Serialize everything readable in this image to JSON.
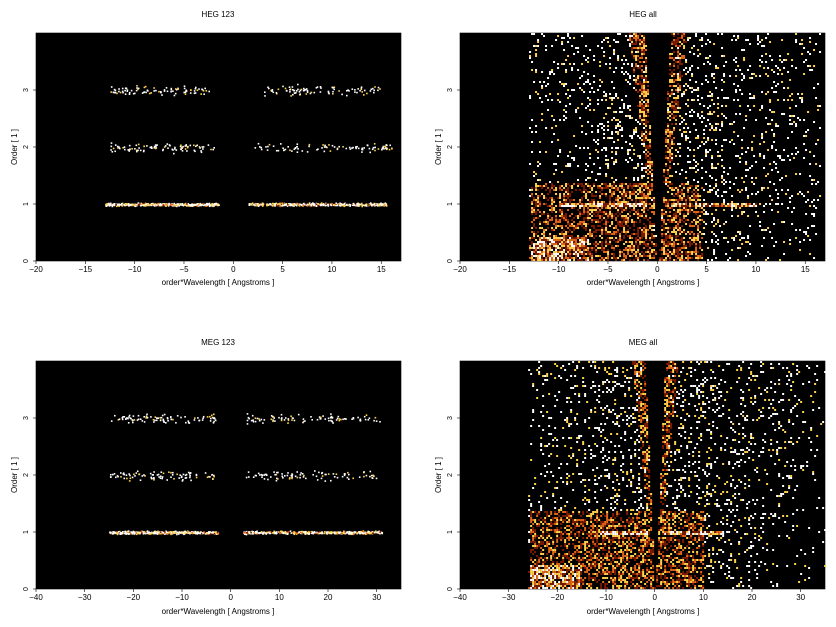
{
  "chart_data": [
    {
      "type": "heatmap",
      "title": "HEG 123",
      "xlabel": "order*Wavelength [ Angstroms ]",
      "ylabel": "Order [ 1 ]",
      "xlim": [
        -20,
        17
      ],
      "ylim": [
        0,
        4
      ],
      "xticks": [
        -20,
        -15,
        -10,
        -5,
        0,
        5,
        10,
        15
      ],
      "xtick_labels": [
        "−20",
        "−15",
        "−10",
        "−5",
        "0",
        "5",
        "10",
        "15"
      ],
      "yticks": [
        0,
        1,
        2,
        3
      ],
      "ytick_labels": [
        "0",
        "1",
        "2",
        "3"
      ],
      "bands": [
        {
          "order": 1,
          "x_ranges": [
            [
              -13,
              -1.5
            ],
            [
              1.5,
              15.5
            ]
          ],
          "strength": "strong"
        },
        {
          "order": 2,
          "x_ranges": [
            [
              -12.5,
              -2
            ],
            [
              2,
              16
            ]
          ],
          "strength": "weak"
        },
        {
          "order": 3,
          "x_ranges": [
            [
              -12.5,
              -2.5
            ],
            [
              3,
              15
            ]
          ],
          "strength": "weak"
        }
      ],
      "background_color": "#000000"
    },
    {
      "type": "heatmap",
      "title": "HEG all",
      "xlabel": "order*Wavelength [ Angstroms ]",
      "ylabel": "Order [ 1 ]",
      "xlim": [
        -20,
        17
      ],
      "ylim": [
        0,
        4
      ],
      "xticks": [
        -20,
        -15,
        -10,
        -5,
        0,
        5,
        10,
        15
      ],
      "xtick_labels": [
        "−20",
        "−15",
        "−10",
        "−5",
        "0",
        "5",
        "10",
        "15"
      ],
      "yticks": [
        0,
        1,
        2,
        3
      ],
      "ytick_labels": [
        "0",
        "1",
        "2",
        "3"
      ],
      "x_data_range": [
        -13,
        16.5
      ],
      "background_color": "#000000"
    },
    {
      "type": "heatmap",
      "title": "MEG 123",
      "xlabel": "order*Wavelength [ Angstroms ]",
      "ylabel": "Order [ 1 ]",
      "xlim": [
        -40,
        35
      ],
      "ylim": [
        0,
        4
      ],
      "xticks": [
        -40,
        -30,
        -20,
        -10,
        0,
        10,
        20,
        30
      ],
      "xtick_labels": [
        "−40",
        "−30",
        "−20",
        "−10",
        "0",
        "10",
        "20",
        "30"
      ],
      "yticks": [
        0,
        1,
        2,
        3
      ],
      "ytick_labels": [
        "0",
        "1",
        "2",
        "3"
      ],
      "bands": [
        {
          "order": 1,
          "x_ranges": [
            [
              -25,
              -2.5
            ],
            [
              2.5,
              31
            ]
          ],
          "strength": "strong"
        },
        {
          "order": 2,
          "x_ranges": [
            [
              -25,
              -3
            ],
            [
              3,
              30
            ]
          ],
          "strength": "weak"
        },
        {
          "order": 3,
          "x_ranges": [
            [
              -25,
              -3
            ],
            [
              3,
              31
            ]
          ],
          "strength": "weak"
        }
      ],
      "background_color": "#000000"
    },
    {
      "type": "heatmap",
      "title": "MEG all",
      "xlabel": "order*Wavelength [ Angstroms ]",
      "ylabel": "Order [ 1 ]",
      "xlim": [
        -40,
        35
      ],
      "ylim": [
        0,
        4
      ],
      "xticks": [
        -40,
        -30,
        -20,
        -10,
        0,
        10,
        20,
        30
      ],
      "xtick_labels": [
        "−40",
        "−30",
        "−20",
        "−10",
        "0",
        "10",
        "20",
        "30"
      ],
      "yticks": [
        0,
        1,
        2,
        3
      ],
      "ytick_labels": [
        "0",
        "1",
        "2",
        "3"
      ],
      "x_data_range": [
        -26,
        35
      ],
      "background_color": "#000000"
    }
  ],
  "colors": {
    "background": "#000000",
    "hot_low": "#7a1a00",
    "hot_mid": "#e0661a",
    "hot_high": "#ffd24d",
    "hot_max": "#ffffff"
  }
}
